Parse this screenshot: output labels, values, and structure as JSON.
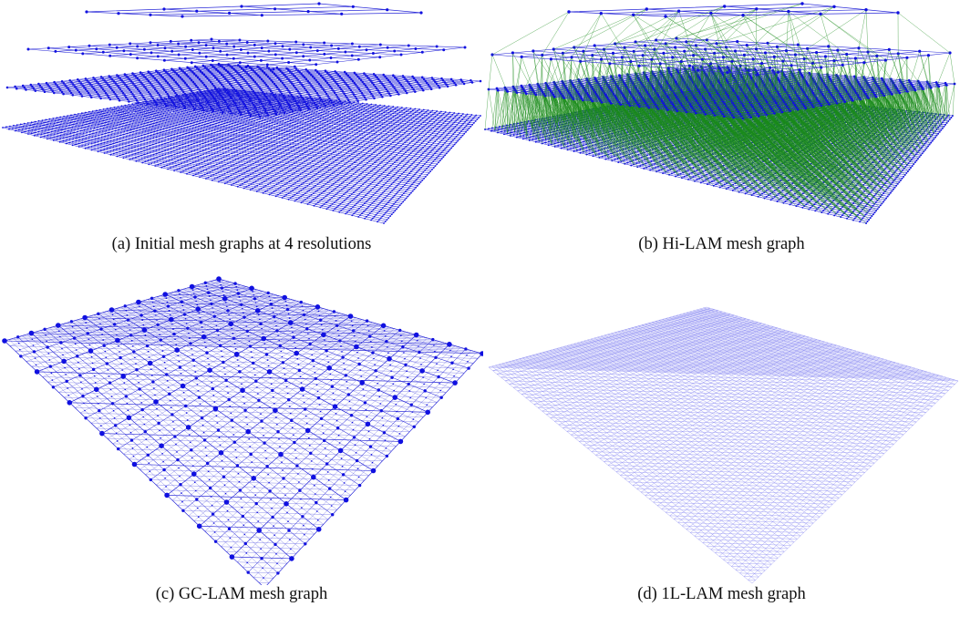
{
  "figure": {
    "panels": [
      {
        "id": "a",
        "caption": "(a) Initial mesh graphs at 4 resolutions"
      },
      {
        "id": "b",
        "caption": "(b) Hi-LAM mesh graph"
      },
      {
        "id": "c",
        "caption": "(c) GC-LAM mesh graph"
      },
      {
        "id": "d",
        "caption": "(d) 1L-LAM mesh graph"
      }
    ]
  },
  "colors": {
    "node": "#1010e0",
    "intra_edge": "#2a2ad8",
    "inter_edge": "#1a8a1a",
    "light_edge": "#7a7af0"
  }
}
